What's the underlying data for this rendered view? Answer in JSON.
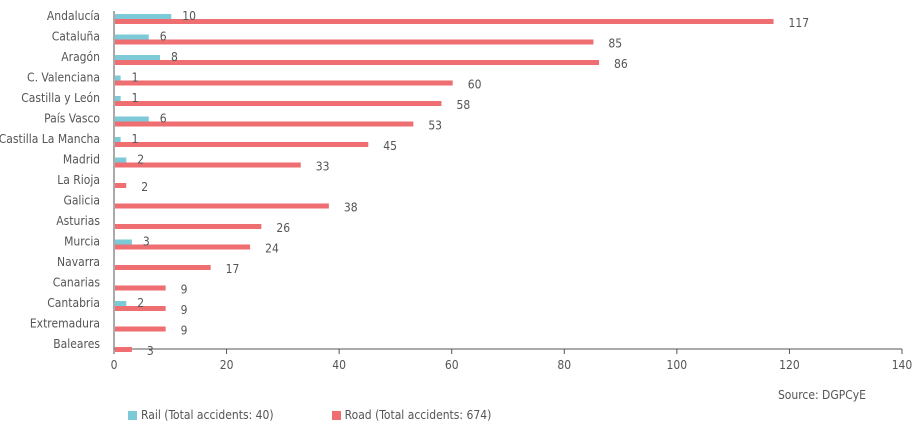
{
  "chart_data": {
    "type": "bar",
    "orientation": "horizontal",
    "categories": [
      "Andalucía",
      "Cataluña",
      "Aragón",
      "C. Valenciana",
      "Castilla y León",
      "País Vasco",
      "Castilla La Mancha",
      "Madrid",
      "La Rioja",
      "Galicia",
      "Asturias",
      "Murcia",
      "Navarra",
      "Canarias",
      "Cantabria",
      "Extremadura",
      "Baleares"
    ],
    "series": [
      {
        "name": "Rail (Total accidents: 40)",
        "color": "#7ccad8",
        "values": [
          10,
          6,
          8,
          1,
          1,
          6,
          1,
          2,
          null,
          null,
          null,
          3,
          null,
          null,
          2,
          null,
          null
        ]
      },
      {
        "name": "Road (Total accidents: 674)",
        "color": "#ee6e72",
        "values": [
          117,
          85,
          86,
          60,
          58,
          53,
          45,
          33,
          2,
          38,
          26,
          24,
          17,
          9,
          9,
          9,
          3
        ]
      }
    ],
    "xlim": [
      0,
      140
    ],
    "xticks": [
      0,
      20,
      40,
      60,
      80,
      100,
      120,
      140
    ],
    "grid": false,
    "legend_position": "bottom-left",
    "source": "Source: DGPCyE"
  }
}
